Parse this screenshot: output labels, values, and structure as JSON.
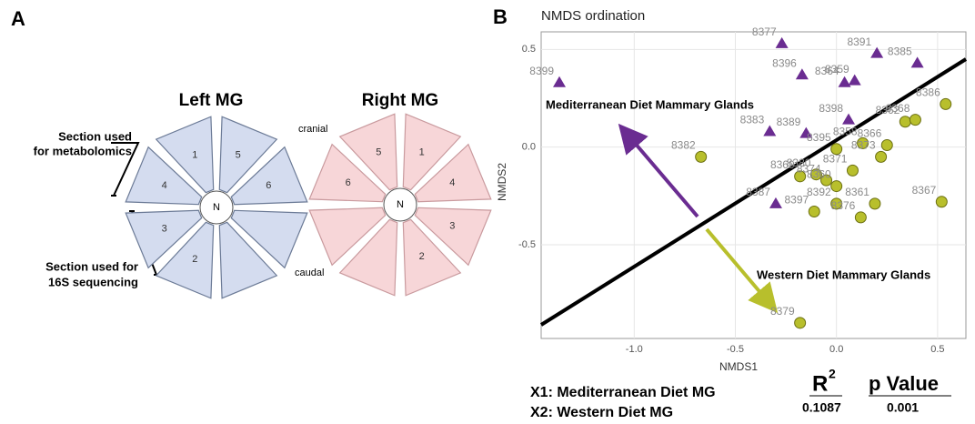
{
  "panel_labels": [
    "A",
    "B"
  ],
  "panel_a": {
    "left": {
      "title": "Left MG",
      "center": "N",
      "wedges": [
        "1",
        "5",
        "6",
        "4",
        "3",
        "2"
      ]
    },
    "right": {
      "title": "Right MG",
      "center": "N",
      "wedges": [
        "5",
        "1",
        "4",
        "3",
        "2",
        "6"
      ]
    },
    "cranial": "cranial",
    "caudal": "caudal",
    "bracket_top": [
      "Section used",
      "for metabolomics"
    ],
    "bracket_bottom": [
      "Section used for",
      "16S sequencing"
    ]
  },
  "chart_data": {
    "type": "scatter",
    "title": "NMDS ordination",
    "x_label": "NMDS1",
    "y_label": "NMDS2",
    "xlim": [
      -1.46,
      0.64
    ],
    "ylim": [
      -0.98,
      0.59
    ],
    "xticks": [
      {
        "value": -1.0,
        "label": "-1.0"
      },
      -0.5,
      {
        "value": 0.0,
        "label": "0.0"
      },
      0.5
    ],
    "yticks": [
      -0.5,
      {
        "value": 0.0,
        "label": "0.0"
      },
      0.5
    ],
    "grid": true,
    "annotations": [
      "Mediterranean Diet Mammary Glands",
      "Western Diet Mammary Glands"
    ],
    "series": [
      {
        "marker": "triangle",
        "color": "#6a2c91",
        "point_labels": [
          "8377",
          "8391",
          "8385",
          "8396",
          "8364",
          "8359",
          "8399",
          "8398",
          "8383",
          "8389",
          "8387"
        ],
        "x": [
          -0.27,
          0.2,
          0.4,
          -0.17,
          0.04,
          0.09,
          -1.37,
          0.06,
          -0.33,
          -0.15,
          -0.3
        ],
        "y": [
          0.53,
          0.48,
          0.43,
          0.37,
          0.33,
          0.34,
          0.33,
          0.14,
          0.08,
          0.07,
          -0.29
        ]
      },
      {
        "marker": "circle",
        "color": "#b8bf2c",
        "point_labels": [
          "8386",
          "8362",
          "8368",
          "8358",
          "8395",
          "8366",
          "8373",
          "8382",
          "8371",
          "8369",
          "8380",
          "8374",
          "8360",
          "8361",
          "8392",
          "8397",
          "8376",
          "8367",
          "8379"
        ],
        "x": [
          0.54,
          0.34,
          0.39,
          0.13,
          0.0,
          0.25,
          0.22,
          -0.67,
          0.08,
          -0.18,
          -0.1,
          -0.05,
          0.0,
          0.19,
          0.0,
          -0.11,
          0.12,
          0.52,
          -0.18
        ],
        "y": [
          0.22,
          0.13,
          0.14,
          0.02,
          -0.01,
          0.01,
          -0.05,
          -0.05,
          -0.12,
          -0.15,
          -0.14,
          -0.17,
          -0.2,
          -0.29,
          -0.29,
          -0.33,
          -0.36,
          -0.28,
          -0.9
        ]
      }
    ]
  },
  "notes": [
    "X1: Mediterranean Diet MG",
    "X2: Western Diet MG"
  ],
  "stats": {
    "r_label": "R",
    "r_superscript": "2",
    "p_label": "p Value",
    "r2": "0.1087",
    "p": "0.001"
  }
}
